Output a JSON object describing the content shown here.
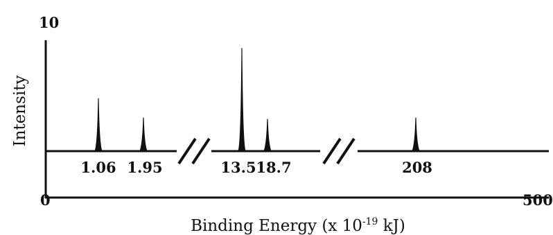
{
  "chart_data": {
    "type": "line",
    "title": "",
    "xlabel": "Binding Energy (x 10",
    "xlabel_exponent": "-19",
    "xlabel_unit": " kJ)",
    "ylabel": "Intensity",
    "x_axis_ticks": [
      "0",
      "500"
    ],
    "y_axis_ticks": [
      "10"
    ],
    "ylim": [
      0,
      10
    ],
    "axis_breaks": 2,
    "peaks": [
      {
        "label": "1.06",
        "x": 1.06,
        "intensity": 4.1
      },
      {
        "label": "1.95",
        "x": 1.95,
        "intensity": 2.6
      },
      {
        "label": "13.5",
        "x": 13.5,
        "intensity": 8.0
      },
      {
        "label": "18.7",
        "x": 18.7,
        "intensity": 2.5
      },
      {
        "label": "208",
        "x": 208,
        "intensity": 2.6
      }
    ],
    "grid": false,
    "colors": {
      "line": "#111111",
      "background": "#ffffff"
    }
  }
}
